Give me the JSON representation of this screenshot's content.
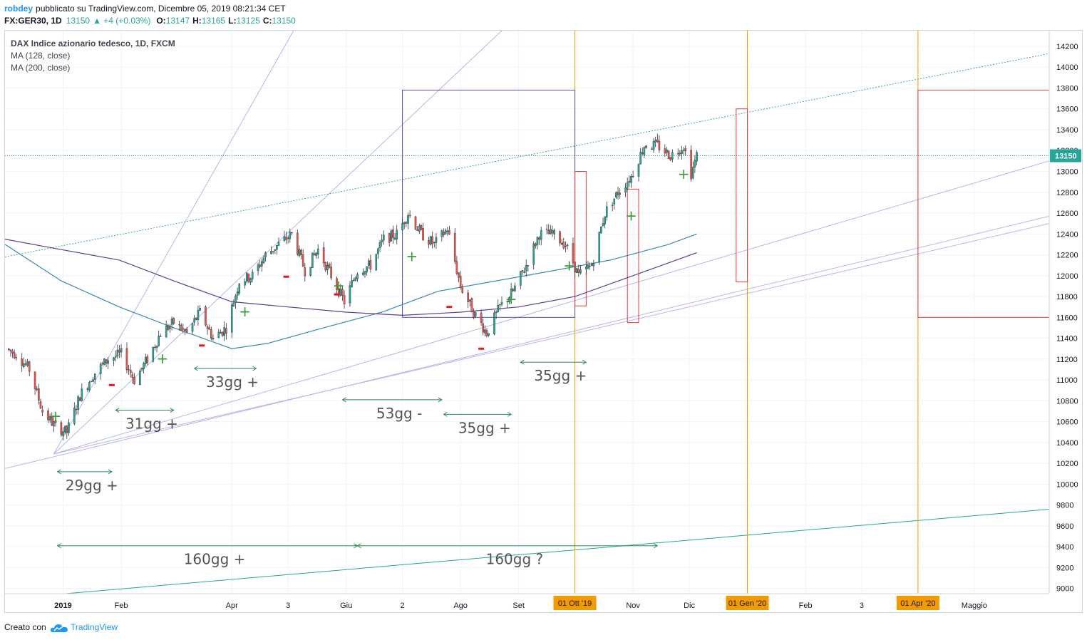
{
  "header": {
    "user": "robdey",
    "published": "pubblicato su TradingView.com, Dicembre 05, 2019 08:21:34 CET",
    "symbol": "FX:GER30, 1D",
    "last": "13150",
    "change": "▲ +4 (+0.03%)",
    "o_label": "O:",
    "o": "13147",
    "h_label": "H:",
    "h": "13165",
    "l_label": "L:",
    "l": "13125",
    "c_label": "C:",
    "c": "13150"
  },
  "legend": {
    "title": "DAX Indice azionario tedesco, 1D, FXCM",
    "ma1": "MA (128, close)",
    "ma2": "MA (200, close)"
  },
  "footer": {
    "created": "Creato con",
    "brand": "TradingView"
  },
  "colors": {
    "up": "#26a69a",
    "down": "#ef5350",
    "ma128": "#3c8ab0",
    "ma200": "#5b3f94",
    "orange": "#f29a00",
    "box": "#5a4fb0",
    "redbox": "#e83a3a",
    "trend": "#b4b7ea",
    "green_mark": "#3a9a3a",
    "arrow": "#2e8b57"
  },
  "chart_data": {
    "type": "candlestick",
    "title": "DAX Indice azionario tedesco, 1D, FXCM",
    "y_axis": {
      "ylim": [
        8950,
        14350
      ],
      "ticks": [
        9000,
        9200,
        9400,
        9600,
        9800,
        10000,
        10200,
        10400,
        10600,
        10800,
        11000,
        11200,
        11400,
        11600,
        11800,
        12000,
        12200,
        12400,
        12600,
        12800,
        13000,
        13200,
        13400,
        13600,
        13800,
        14000,
        14200
      ],
      "last_price_label": "13150"
    },
    "x_axis": {
      "xlim": [
        "2018-12-01",
        "2020-06-10"
      ],
      "tick_labels": [
        {
          "date": "2019-01-01",
          "label": "2019",
          "bold": true
        },
        {
          "date": "2019-02-01",
          "label": "Feb"
        },
        {
          "date": "2019-04-01",
          "label": "Apr"
        },
        {
          "date": "2019-05-01",
          "label": "3"
        },
        {
          "date": "2019-06-01",
          "label": "Giu"
        },
        {
          "date": "2019-07-01",
          "label": "2"
        },
        {
          "date": "2019-08-01",
          "label": "Ago"
        },
        {
          "date": "2019-09-01",
          "label": "Set"
        },
        {
          "date": "2019-11-01",
          "label": "Nov"
        },
        {
          "date": "2019-12-01",
          "label": "Dic"
        },
        {
          "date": "2020-02-01",
          "label": "Feb"
        },
        {
          "date": "2020-03-02",
          "label": "3"
        },
        {
          "date": "2020-05-01",
          "label": "Maggio"
        }
      ],
      "highlight_labels": [
        {
          "date": "2019-10-01",
          "label": "01 Ott '19"
        },
        {
          "date": "2020-01-01",
          "label": "01 Gen '20"
        },
        {
          "date": "2020-04-01",
          "label": "01 Apr '20"
        }
      ]
    },
    "price_path": [
      [
        "2018-12-01",
        11300
      ],
      [
        "2018-12-07",
        11250
      ],
      [
        "2018-12-14",
        11100
      ],
      [
        "2018-12-21",
        10700
      ],
      [
        "2018-12-28",
        10550
      ],
      [
        "2019-01-03",
        10500
      ],
      [
        "2019-01-10",
        10850
      ],
      [
        "2019-01-17",
        11050
      ],
      [
        "2019-01-25",
        11200
      ],
      [
        "2019-02-01",
        11250
      ],
      [
        "2019-02-08",
        11000
      ],
      [
        "2019-02-15",
        11200
      ],
      [
        "2019-02-22",
        11450
      ],
      [
        "2019-03-01",
        11550
      ],
      [
        "2019-03-08",
        11450
      ],
      [
        "2019-03-15",
        11650
      ],
      [
        "2019-03-22",
        11400
      ],
      [
        "2019-03-29",
        11500
      ],
      [
        "2019-04-05",
        11950
      ],
      [
        "2019-04-12",
        12000
      ],
      [
        "2019-04-19",
        12200
      ],
      [
        "2019-04-26",
        12300
      ],
      [
        "2019-05-03",
        12400
      ],
      [
        "2019-05-10",
        12050
      ],
      [
        "2019-05-17",
        12250
      ],
      [
        "2019-05-24",
        12000
      ],
      [
        "2019-05-31",
        11750
      ],
      [
        "2019-06-07",
        12050
      ],
      [
        "2019-06-14",
        12100
      ],
      [
        "2019-06-21",
        12350
      ],
      [
        "2019-06-28",
        12400
      ],
      [
        "2019-07-04",
        12600
      ],
      [
        "2019-07-11",
        12400
      ],
      [
        "2019-07-18",
        12300
      ],
      [
        "2019-07-25",
        12450
      ],
      [
        "2019-08-01",
        11900
      ],
      [
        "2019-08-08",
        11650
      ],
      [
        "2019-08-15",
        11450
      ],
      [
        "2019-08-22",
        11700
      ],
      [
        "2019-08-29",
        11850
      ],
      [
        "2019-09-05",
        12100
      ],
      [
        "2019-09-12",
        12400
      ],
      [
        "2019-09-19",
        12400
      ],
      [
        "2019-09-26",
        12300
      ],
      [
        "2019-10-03",
        12000
      ],
      [
        "2019-10-10",
        12100
      ],
      [
        "2019-10-17",
        12600
      ],
      [
        "2019-10-24",
        12800
      ],
      [
        "2019-10-31",
        12950
      ],
      [
        "2019-11-07",
        13250
      ],
      [
        "2019-11-14",
        13250
      ],
      [
        "2019-11-21",
        13150
      ],
      [
        "2019-11-28",
        13250
      ],
      [
        "2019-12-02",
        12980
      ],
      [
        "2019-12-05",
        13150
      ]
    ],
    "series": [
      {
        "name": "MA (128, close)",
        "values": [
          [
            "2018-12-01",
            12300
          ],
          [
            "2018-12-31",
            11950
          ],
          [
            "2019-01-31",
            11700
          ],
          [
            "2019-03-01",
            11500
          ],
          [
            "2019-04-01",
            11300
          ],
          [
            "2019-04-20",
            11350
          ],
          [
            "2019-05-20",
            11500
          ],
          [
            "2019-06-20",
            11650
          ],
          [
            "2019-07-20",
            11850
          ],
          [
            "2019-08-20",
            11950
          ],
          [
            "2019-09-20",
            12050
          ],
          [
            "2019-10-20",
            12150
          ],
          [
            "2019-11-20",
            12300
          ],
          [
            "2019-12-05",
            12400
          ]
        ]
      },
      {
        "name": "MA (200, close)",
        "values": [
          [
            "2018-12-01",
            12350
          ],
          [
            "2018-12-31",
            12250
          ],
          [
            "2019-01-31",
            12150
          ],
          [
            "2019-03-01",
            11950
          ],
          [
            "2019-04-01",
            11750
          ],
          [
            "2019-05-01",
            11700
          ],
          [
            "2019-06-01",
            11650
          ],
          [
            "2019-07-01",
            11620
          ],
          [
            "2019-08-01",
            11650
          ],
          [
            "2019-09-01",
            11700
          ],
          [
            "2019-10-01",
            11800
          ],
          [
            "2019-11-01",
            12000
          ],
          [
            "2019-12-05",
            12220
          ]
        ]
      }
    ],
    "annotations": {
      "vertical_lines": [
        "2019-10-01",
        "2020-01-01",
        "2020-04-01"
      ],
      "price_box": {
        "from": "2019-07-01",
        "to": "2019-10-01",
        "y": [
          11600,
          13780
        ]
      },
      "price_box2": {
        "from": "2020-04-01",
        "to": "2020-06-10",
        "y": [
          11600,
          13780
        ]
      },
      "red_boxes": [
        {
          "from": "2019-10-01",
          "to": "2019-10-07",
          "y": [
            11710,
            13000
          ]
        },
        {
          "from": "2019-10-29",
          "to": "2019-11-04",
          "y": [
            11550,
            12830
          ]
        },
        {
          "from": "2019-12-26",
          "to": "2020-01-01",
          "y": [
            11940,
            13600
          ]
        }
      ],
      "plus_marks": [
        [
          "2018-12-28",
          10650
        ],
        [
          "2019-02-23",
          11200
        ],
        [
          "2019-04-08",
          11650
        ],
        [
          "2019-05-28",
          11900
        ],
        [
          "2019-07-06",
          12180
        ],
        [
          "2019-08-28",
          11770
        ],
        [
          "2019-09-28",
          12090
        ],
        [
          "2019-10-31",
          12570
        ],
        [
          "2019-11-28",
          12970
        ]
      ],
      "minus_marks": [
        [
          "2019-01-27",
          10950
        ],
        [
          "2019-03-16",
          11330
        ],
        [
          "2019-04-30",
          11990
        ],
        [
          "2019-05-27",
          11820
        ],
        [
          "2019-07-26",
          11700
        ],
        [
          "2019-08-12",
          11300
        ]
      ],
      "ranges": [
        {
          "from": "2018-12-29",
          "to": "2019-01-27",
          "y": 10120,
          "label": "29gg +"
        },
        {
          "from": "2019-01-29",
          "to": "2019-03-01",
          "y": 10710,
          "label": "31gg +"
        },
        {
          "from": "2019-03-12",
          "to": "2019-04-14",
          "y": 11110,
          "label": "33gg +"
        },
        {
          "from": "2019-05-30",
          "to": "2019-07-22",
          "y": 10810,
          "label": "53gg -"
        },
        {
          "from": "2019-07-23",
          "to": "2019-08-28",
          "y": 10670,
          "label": "35gg +"
        },
        {
          "from": "2019-09-02",
          "to": "2019-10-07",
          "y": 11170,
          "label": "35gg +"
        },
        {
          "from": "2018-12-29",
          "to": "2019-06-07",
          "y": 9410,
          "label": "160gg +"
        },
        {
          "from": "2019-06-07",
          "to": "2019-11-14",
          "y": 9410,
          "label": "160gg ?"
        }
      ]
    }
  }
}
